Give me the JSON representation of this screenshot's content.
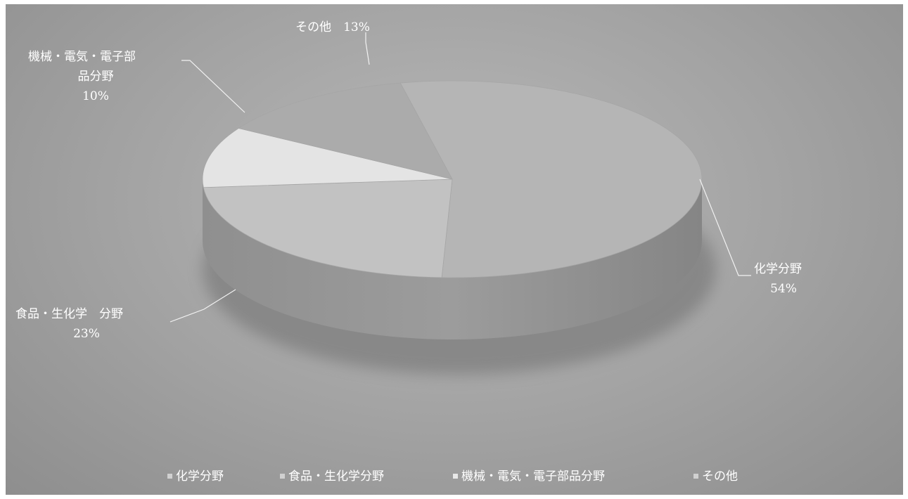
{
  "chart_data": {
    "type": "pie",
    "title": "",
    "categories": [
      "化学分野",
      "食品・生化学分野",
      "機械・電気・電子部品分野",
      "その他"
    ],
    "values": [
      54,
      23,
      10,
      13
    ],
    "unit": "%",
    "legend_position": "bottom",
    "colors": [
      "#b5b5b5",
      "#c2c2c2",
      "#e4e4e4",
      "#ababab"
    ],
    "slice_labels": [
      {
        "lines": [
          "化学分野",
          "54%"
        ]
      },
      {
        "lines": [
          "食品・生化学　分野",
          "23%"
        ]
      },
      {
        "lines": [
          "機械・電気・電子部",
          "品分野",
          "10%"
        ]
      },
      {
        "lines": [
          "その他　13%"
        ]
      }
    ],
    "legend": [
      "化学分野",
      "食品・生化学分野",
      "機械・電気・電子部品分野",
      "その他"
    ]
  }
}
